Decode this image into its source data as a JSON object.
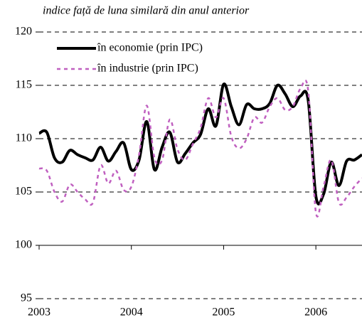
{
  "chart_data": {
    "type": "line",
    "subtitle": "indice față de luna similară din anul anterior",
    "x": [
      2003,
      2003.0833,
      2003.1667,
      2003.25,
      2003.3333,
      2003.4167,
      2003.5,
      2003.5833,
      2003.6667,
      2003.75,
      2003.8333,
      2003.9167,
      2004,
      2004.0833,
      2004.1667,
      2004.25,
      2004.3333,
      2004.4167,
      2004.5,
      2004.5833,
      2004.6667,
      2004.75,
      2004.8333,
      2004.9167,
      2005,
      2005.0833,
      2005.1667,
      2005.25,
      2005.3333,
      2005.4167,
      2005.5,
      2005.5833,
      2005.6667,
      2005.75,
      2005.8333,
      2005.9167,
      2006,
      2006.0833,
      2006.1667,
      2006.25,
      2006.3333,
      2006.4167,
      2006.5
    ],
    "series": [
      {
        "name": "în economie (prin IPC)",
        "color": "#000000",
        "dash": false,
        "values": [
          110.5,
          110.6,
          108.2,
          107.8,
          108.9,
          108.5,
          108.2,
          108.0,
          109.2,
          107.9,
          108.8,
          109.6,
          107.1,
          108.0,
          111.6,
          107.1,
          109.2,
          110.6,
          107.8,
          108.6,
          109.6,
          110.4,
          112.8,
          111.2,
          115.1,
          113.0,
          111.3,
          113.2,
          112.8,
          112.8,
          113.3,
          115.0,
          114.2,
          113.0,
          114.0,
          113.6,
          104.6,
          104.8,
          107.8,
          105.6,
          107.9,
          108.0,
          108.5
        ]
      },
      {
        "name": "în industrie (prin IPC)",
        "color": "#c060c0",
        "dash": true,
        "values": [
          107.2,
          107.0,
          105.0,
          104.1,
          105.7,
          105.0,
          104.3,
          104.0,
          107.5,
          105.8,
          107.0,
          105.2,
          105.5,
          108.5,
          113.1,
          108.2,
          108.0,
          111.8,
          109.0,
          108.0,
          109.5,
          111.0,
          113.8,
          112.0,
          113.8,
          110.2,
          109.1,
          110.0,
          112.0,
          111.5,
          113.0,
          113.8,
          112.7,
          113.0,
          114.7,
          114.5,
          103.1,
          105.5,
          108.0,
          104.0,
          104.5,
          105.5,
          106.3
        ]
      }
    ],
    "xlim": [
      2003,
      2006.5
    ],
    "xticks": [
      2003,
      2004,
      2005,
      2006
    ],
    "ylim": [
      95,
      120
    ],
    "yticks": [
      95,
      100,
      105,
      110,
      115,
      120
    ],
    "x_axis_at": 100,
    "grid": true,
    "legend": "upper left"
  }
}
